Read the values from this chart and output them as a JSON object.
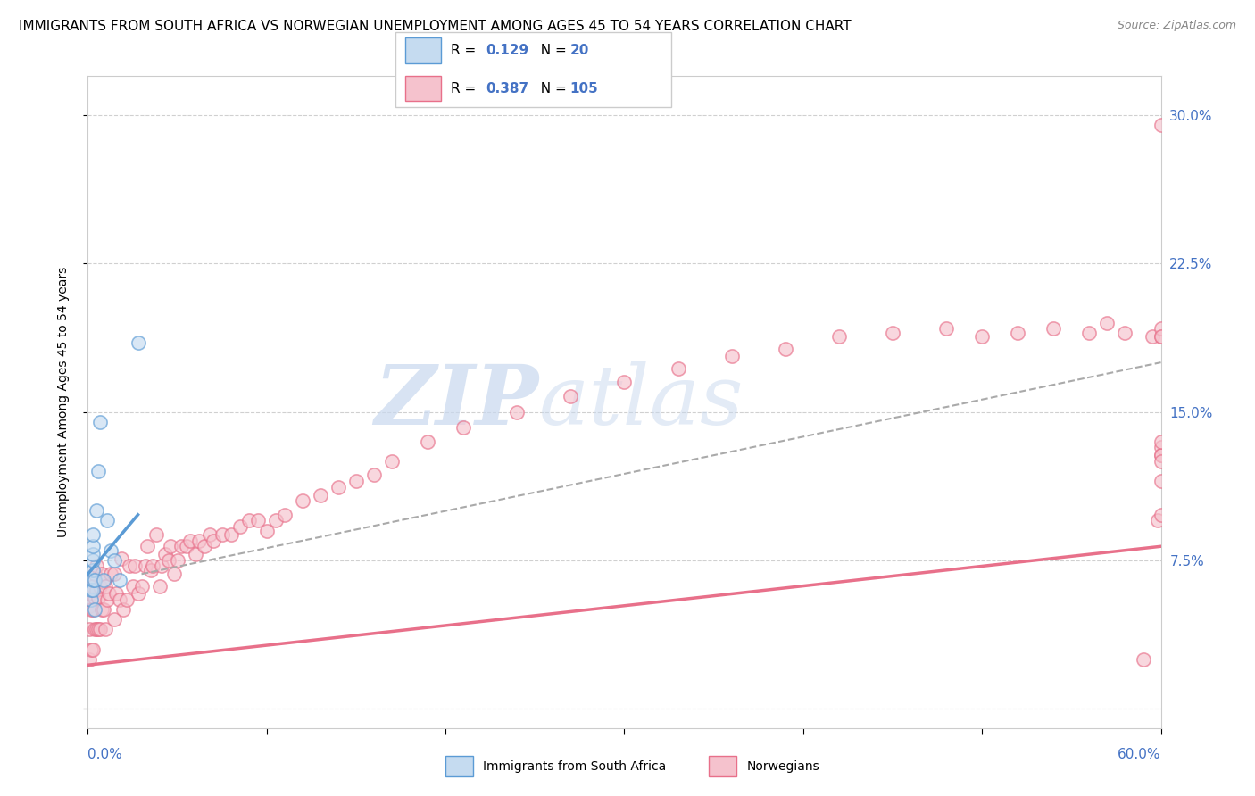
{
  "title": "IMMIGRANTS FROM SOUTH AFRICA VS NORWEGIAN UNEMPLOYMENT AMONG AGES 45 TO 54 YEARS CORRELATION CHART",
  "source": "Source: ZipAtlas.com",
  "ylabel": "Unemployment Among Ages 45 to 54 years",
  "right_yticks": [
    0.0,
    0.075,
    0.15,
    0.225,
    0.3
  ],
  "right_yticklabels": [
    "",
    "7.5%",
    "15.0%",
    "22.5%",
    "30.0%"
  ],
  "xmin": 0.0,
  "xmax": 0.6,
  "ymin": -0.01,
  "ymax": 0.32,
  "watermark_zip": "ZIP",
  "watermark_atlas": "atlas",
  "blue_scatter_x": [
    0.002,
    0.002,
    0.003,
    0.003,
    0.003,
    0.003,
    0.003,
    0.003,
    0.003,
    0.004,
    0.004,
    0.005,
    0.006,
    0.007,
    0.009,
    0.011,
    0.013,
    0.015,
    0.018,
    0.028
  ],
  "blue_scatter_y": [
    0.055,
    0.06,
    0.06,
    0.065,
    0.07,
    0.075,
    0.078,
    0.082,
    0.088,
    0.05,
    0.065,
    0.1,
    0.12,
    0.145,
    0.065,
    0.095,
    0.08,
    0.075,
    0.065,
    0.185
  ],
  "pink_scatter_x": [
    0.001,
    0.001,
    0.001,
    0.002,
    0.002,
    0.002,
    0.003,
    0.003,
    0.003,
    0.004,
    0.004,
    0.004,
    0.005,
    0.005,
    0.005,
    0.006,
    0.006,
    0.007,
    0.007,
    0.008,
    0.008,
    0.009,
    0.009,
    0.01,
    0.01,
    0.011,
    0.012,
    0.013,
    0.015,
    0.015,
    0.016,
    0.018,
    0.019,
    0.02,
    0.022,
    0.023,
    0.025,
    0.026,
    0.028,
    0.03,
    0.032,
    0.033,
    0.035,
    0.036,
    0.038,
    0.04,
    0.041,
    0.043,
    0.045,
    0.046,
    0.048,
    0.05,
    0.052,
    0.055,
    0.057,
    0.06,
    0.062,
    0.065,
    0.068,
    0.07,
    0.075,
    0.08,
    0.085,
    0.09,
    0.095,
    0.1,
    0.105,
    0.11,
    0.12,
    0.13,
    0.14,
    0.15,
    0.16,
    0.17,
    0.19,
    0.21,
    0.24,
    0.27,
    0.3,
    0.33,
    0.36,
    0.39,
    0.42,
    0.45,
    0.48,
    0.5,
    0.52,
    0.54,
    0.56,
    0.57,
    0.58,
    0.59,
    0.595,
    0.598,
    0.6,
    0.6,
    0.6,
    0.6,
    0.6,
    0.6,
    0.6,
    0.6,
    0.6,
    0.6,
    0.6
  ],
  "pink_scatter_y": [
    0.025,
    0.04,
    0.052,
    0.03,
    0.05,
    0.058,
    0.03,
    0.05,
    0.062,
    0.04,
    0.056,
    0.068,
    0.04,
    0.06,
    0.072,
    0.04,
    0.056,
    0.04,
    0.062,
    0.05,
    0.068,
    0.05,
    0.064,
    0.04,
    0.062,
    0.055,
    0.058,
    0.068,
    0.045,
    0.068,
    0.058,
    0.055,
    0.076,
    0.05,
    0.055,
    0.072,
    0.062,
    0.072,
    0.058,
    0.062,
    0.072,
    0.082,
    0.07,
    0.072,
    0.088,
    0.062,
    0.072,
    0.078,
    0.075,
    0.082,
    0.068,
    0.075,
    0.082,
    0.082,
    0.085,
    0.078,
    0.085,
    0.082,
    0.088,
    0.085,
    0.088,
    0.088,
    0.092,
    0.095,
    0.095,
    0.09,
    0.095,
    0.098,
    0.105,
    0.108,
    0.112,
    0.115,
    0.118,
    0.125,
    0.135,
    0.142,
    0.15,
    0.158,
    0.165,
    0.172,
    0.178,
    0.182,
    0.188,
    0.19,
    0.192,
    0.188,
    0.19,
    0.192,
    0.19,
    0.195,
    0.19,
    0.025,
    0.188,
    0.095,
    0.188,
    0.132,
    0.128,
    0.295,
    0.192,
    0.188,
    0.128,
    0.135,
    0.125,
    0.115,
    0.098
  ],
  "blue_line_x": [
    0.0,
    0.028
  ],
  "blue_line_y": [
    0.068,
    0.098
  ],
  "pink_line_x": [
    0.0,
    0.6
  ],
  "pink_line_y": [
    0.022,
    0.082
  ],
  "gray_dashed_line_x": [
    0.03,
    0.6
  ],
  "gray_dashed_line_y": [
    0.068,
    0.175
  ],
  "scatter_alpha": 0.65,
  "scatter_size": 120,
  "blue_color": "#5b9bd5",
  "pink_color": "#e8708a",
  "blue_fill": "#c5dbf0",
  "pink_fill": "#f5c2cd",
  "grid_color": "#d0d0d0",
  "background_color": "#ffffff",
  "title_fontsize": 11,
  "axis_label_fontsize": 10,
  "tick_fontsize": 11,
  "right_tick_color": "#4472c4",
  "legend_color": "#4472c4"
}
